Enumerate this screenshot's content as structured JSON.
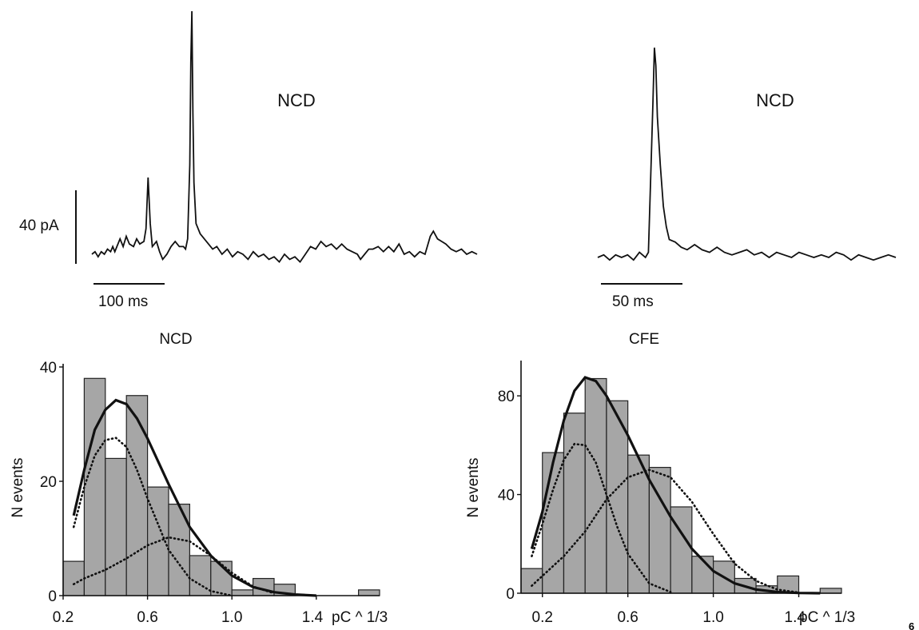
{
  "page_number": "6",
  "traces": [
    {
      "label": "NCD",
      "amp_scale": "40 pA",
      "time_scale": "100 ms",
      "samples": [
        [
          0,
          0
        ],
        [
          3,
          1
        ],
        [
          6,
          -1
        ],
        [
          9,
          1
        ],
        [
          12,
          0
        ],
        [
          15,
          2
        ],
        [
          18,
          1
        ],
        [
          20,
          3
        ],
        [
          22,
          1
        ],
        [
          24,
          3
        ],
        [
          27,
          6
        ],
        [
          30,
          3
        ],
        [
          33,
          7
        ],
        [
          36,
          4
        ],
        [
          40,
          3
        ],
        [
          43,
          6
        ],
        [
          46,
          4
        ],
        [
          50,
          5
        ],
        [
          52,
          10
        ],
        [
          54,
          30
        ],
        [
          56,
          12
        ],
        [
          58,
          3
        ],
        [
          62,
          5
        ],
        [
          65,
          1
        ],
        [
          68,
          -2
        ],
        [
          72,
          0
        ],
        [
          76,
          3
        ],
        [
          80,
          5
        ],
        [
          84,
          3
        ],
        [
          88,
          3
        ],
        [
          90,
          2
        ],
        [
          92,
          6
        ],
        [
          94,
          35
        ],
        [
          95,
          75
        ],
        [
          96,
          95
        ],
        [
          97,
          55
        ],
        [
          98,
          28
        ],
        [
          100,
          12
        ],
        [
          104,
          8
        ],
        [
          108,
          6
        ],
        [
          112,
          4
        ],
        [
          116,
          2
        ],
        [
          120,
          3
        ],
        [
          125,
          0
        ],
        [
          130,
          2
        ],
        [
          135,
          -1
        ],
        [
          140,
          1
        ],
        [
          145,
          0
        ],
        [
          150,
          -2
        ],
        [
          155,
          1
        ],
        [
          160,
          -1
        ],
        [
          165,
          0
        ],
        [
          170,
          -2
        ],
        [
          175,
          -1
        ],
        [
          180,
          -3
        ],
        [
          185,
          0
        ],
        [
          190,
          -2
        ],
        [
          195,
          -1
        ],
        [
          200,
          -3
        ],
        [
          205,
          0
        ],
        [
          210,
          3
        ],
        [
          215,
          2
        ],
        [
          220,
          5
        ],
        [
          225,
          3
        ],
        [
          230,
          4
        ],
        [
          235,
          2
        ],
        [
          240,
          4
        ],
        [
          245,
          2
        ],
        [
          250,
          1
        ],
        [
          255,
          0
        ],
        [
          258,
          -2
        ],
        [
          262,
          0
        ],
        [
          266,
          2
        ],
        [
          270,
          2
        ],
        [
          275,
          3
        ],
        [
          280,
          1
        ],
        [
          285,
          3
        ],
        [
          290,
          1
        ],
        [
          295,
          4
        ],
        [
          300,
          0
        ],
        [
          305,
          1
        ],
        [
          310,
          -1
        ],
        [
          315,
          1
        ],
        [
          320,
          0
        ],
        [
          325,
          7
        ],
        [
          328,
          9
        ],
        [
          332,
          6
        ],
        [
          336,
          5
        ],
        [
          340,
          4
        ],
        [
          345,
          2
        ],
        [
          350,
          1
        ],
        [
          355,
          2
        ],
        [
          360,
          0
        ],
        [
          365,
          1
        ],
        [
          370,
          0
        ]
      ]
    },
    {
      "label": "NCD",
      "amp_scale": "",
      "time_scale": "50 ms",
      "samples": [
        [
          0,
          0
        ],
        [
          4,
          1
        ],
        [
          8,
          -1
        ],
        [
          12,
          1
        ],
        [
          16,
          0
        ],
        [
          20,
          1
        ],
        [
          24,
          -1
        ],
        [
          28,
          2
        ],
        [
          30,
          1
        ],
        [
          32,
          0
        ],
        [
          34,
          2
        ],
        [
          36,
          40
        ],
        [
          37,
          60
        ],
        [
          38,
          82
        ],
        [
          39,
          75
        ],
        [
          40,
          55
        ],
        [
          42,
          36
        ],
        [
          44,
          20
        ],
        [
          46,
          12
        ],
        [
          48,
          7
        ],
        [
          52,
          6
        ],
        [
          56,
          4
        ],
        [
          60,
          3
        ],
        [
          65,
          5
        ],
        [
          70,
          3
        ],
        [
          75,
          2
        ],
        [
          80,
          4
        ],
        [
          85,
          2
        ],
        [
          90,
          1
        ],
        [
          95,
          2
        ],
        [
          100,
          3
        ],
        [
          105,
          1
        ],
        [
          110,
          2
        ],
        [
          115,
          0
        ],
        [
          120,
          2
        ],
        [
          125,
          1
        ],
        [
          130,
          0
        ],
        [
          135,
          2
        ],
        [
          140,
          1
        ],
        [
          145,
          0
        ],
        [
          150,
          1
        ],
        [
          155,
          0
        ],
        [
          160,
          2
        ],
        [
          165,
          1
        ],
        [
          170,
          -1
        ],
        [
          175,
          1
        ],
        [
          180,
          0
        ],
        [
          185,
          -1
        ],
        [
          190,
          0
        ],
        [
          195,
          1
        ],
        [
          200,
          0
        ]
      ]
    }
  ],
  "chart_data": [
    {
      "type": "bar",
      "title": "NCD",
      "xlabel": "pC^1/3",
      "ylabel": "N events",
      "xlim": [
        0.2,
        1.7
      ],
      "ylim": [
        0,
        40
      ],
      "x_ticks": [
        0.2,
        0.6,
        1.0,
        1.4
      ],
      "x_tick_labels": [
        "0.2",
        "0.6",
        "1.0",
        "1.4"
      ],
      "x_unit_label": "pC ^ 1/3",
      "y_ticks": [
        0,
        20,
        40
      ],
      "bin_width": 0.1,
      "bin_left_edges": [
        0.2,
        0.3,
        0.4,
        0.5,
        0.6,
        0.7,
        0.8,
        0.9,
        1.0,
        1.1,
        1.2,
        1.3,
        1.4,
        1.5,
        1.6
      ],
      "values": [
        6,
        38,
        24,
        35,
        19,
        16,
        7,
        6,
        1,
        3,
        2,
        0,
        0,
        0,
        1
      ],
      "fits": [
        {
          "style": "solid",
          "x": [
            0.25,
            0.3,
            0.35,
            0.4,
            0.45,
            0.5,
            0.55,
            0.6,
            0.7,
            0.8,
            0.9,
            1.0,
            1.1,
            1.2,
            1.3,
            1.4
          ],
          "y": [
            14,
            22,
            29,
            32.5,
            34.2,
            33.5,
            31,
            27.5,
            19.5,
            12,
            7,
            3.5,
            1.5,
            0.6,
            0.2,
            0
          ]
        },
        {
          "style": "dotted",
          "x": [
            0.25,
            0.3,
            0.35,
            0.4,
            0.45,
            0.5,
            0.55,
            0.6,
            0.7,
            0.8,
            0.9,
            1.0
          ],
          "y": [
            12,
            19,
            24.5,
            27.2,
            27.6,
            26,
            22,
            17,
            8,
            3,
            0.8,
            0
          ]
        },
        {
          "style": "dotted",
          "x": [
            0.25,
            0.3,
            0.4,
            0.5,
            0.6,
            0.7,
            0.8,
            0.9,
            1.0,
            1.1,
            1.2
          ],
          "y": [
            2,
            3,
            4.5,
            6.5,
            8.8,
            10.2,
            9.5,
            7,
            4,
            1.6,
            0.4
          ]
        }
      ]
    },
    {
      "type": "bar",
      "title": "CFE",
      "xlabel": "pC^1/3",
      "ylabel": "N events",
      "xlim": [
        0.1,
        1.6
      ],
      "ylim": [
        0,
        93
      ],
      "x_ticks": [
        0.2,
        0.6,
        1.0,
        1.4
      ],
      "x_tick_labels": [
        "0.2",
        "0.6",
        "1.0",
        "1.4"
      ],
      "x_unit_label": "pC ^ 1/3",
      "y_ticks": [
        0,
        40,
        80
      ],
      "bin_width": 0.1,
      "bin_left_edges": [
        0.1,
        0.2,
        0.3,
        0.4,
        0.5,
        0.6,
        0.7,
        0.8,
        0.9,
        1.0,
        1.1,
        1.2,
        1.3,
        1.4,
        1.5
      ],
      "values": [
        10,
        57,
        73,
        87,
        78,
        56,
        51,
        35,
        15,
        13,
        6,
        3,
        7,
        0,
        2
      ],
      "fits": [
        {
          "style": "solid",
          "x": [
            0.15,
            0.2,
            0.25,
            0.3,
            0.35,
            0.4,
            0.45,
            0.5,
            0.6,
            0.7,
            0.8,
            0.9,
            1.0,
            1.1,
            1.2,
            1.3,
            1.4,
            1.5
          ],
          "y": [
            18,
            33,
            53,
            70,
            82,
            87.5,
            86,
            80,
            64,
            46,
            31,
            18,
            9,
            4,
            1.5,
            0.5,
            0.1,
            0
          ]
        },
        {
          "style": "dotted",
          "x": [
            0.15,
            0.2,
            0.25,
            0.3,
            0.35,
            0.4,
            0.45,
            0.5,
            0.55,
            0.6,
            0.7,
            0.8
          ],
          "y": [
            15,
            28,
            42,
            54,
            60.5,
            60,
            53,
            40,
            27,
            16,
            4,
            0.5
          ]
        },
        {
          "style": "dotted",
          "x": [
            0.15,
            0.2,
            0.3,
            0.4,
            0.5,
            0.6,
            0.7,
            0.8,
            0.9,
            1.0,
            1.1,
            1.2,
            1.3,
            1.4
          ],
          "y": [
            3,
            7,
            15,
            25,
            38,
            47,
            50,
            47,
            37,
            24,
            12,
            5,
            1.5,
            0.3
          ]
        }
      ]
    }
  ]
}
